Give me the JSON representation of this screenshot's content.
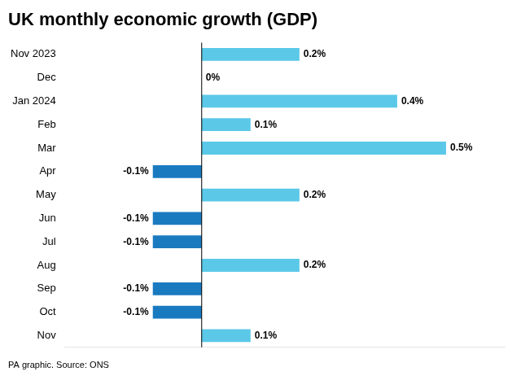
{
  "chart_data": {
    "type": "bar",
    "orientation": "horizontal",
    "title": "UK monthly economic growth (GDP)",
    "annotations": [
      "PA graphic. Source: ONS"
    ],
    "categories": [
      "Nov 2023",
      "Dec",
      "Jan 2024",
      "Feb",
      "Mar",
      "Apr",
      "May",
      "Jun",
      "Jul",
      "Aug",
      "Sep",
      "Oct",
      "Nov"
    ],
    "values": [
      0.2,
      0.0,
      0.4,
      0.1,
      0.5,
      -0.1,
      0.2,
      -0.1,
      -0.1,
      0.2,
      -0.1,
      -0.1,
      0.1
    ],
    "value_labels": [
      "0.2%",
      "0%",
      "0.4%",
      "0.1%",
      "0.5%",
      "-0.1%",
      "0.2%",
      "-0.1%",
      "-0.1%",
      "0.2%",
      "-0.1%",
      "-0.1%",
      "0.1%"
    ],
    "colors": [
      "#5BC8E8",
      "#5BC8E8",
      "#5BC8E8",
      "#5BC8E8",
      "#5BC8E8",
      "#1A7AC0",
      "#5BC8E8",
      "#1A7AC0",
      "#1A7AC0",
      "#5BC8E8",
      "#1A7AC0",
      "#1A7AC0",
      "#5BC8E8"
    ],
    "xlim": [
      -0.28,
      0.62
    ],
    "data_labels": true,
    "tick_labels": "y",
    "grid": false
  }
}
